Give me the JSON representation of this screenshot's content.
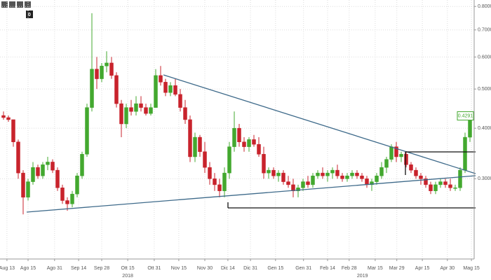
{
  "chart_data": {
    "type": "candlestick",
    "log_y": true,
    "grid": true,
    "up_color": "#43a82f",
    "down_color": "#c8232c",
    "badge": "0",
    "ylim": [
      0.19,
      0.83
    ],
    "yticks": [
      {
        "value": 0.3,
        "label": "0.3000"
      },
      {
        "value": 0.4,
        "label": "0.4000"
      },
      {
        "value": 0.5,
        "label": "0.5000"
      },
      {
        "value": 0.6,
        "label": "0.6000"
      },
      {
        "value": 0.7,
        "label": "0.7000"
      },
      {
        "value": 0.8,
        "label": "0.8000"
      }
    ],
    "xticks": [
      {
        "value": 0.7,
        "label": "Aug 13"
      },
      {
        "value": 5,
        "label": "Ago 15"
      },
      {
        "value": 10.4,
        "label": "Ago 31"
      },
      {
        "value": 15.3,
        "label": "Sep 14"
      },
      {
        "value": 20,
        "label": "Sep 28"
      },
      {
        "value": 25.3,
        "label": "Ott 15"
      },
      {
        "value": 30.7,
        "label": "Ott 31"
      },
      {
        "value": 35.7,
        "label": "Nov 15"
      },
      {
        "value": 41,
        "label": "Nov 30"
      },
      {
        "value": 45.7,
        "label": "Dic 14"
      },
      {
        "value": 50.3,
        "label": "Dic 31"
      },
      {
        "value": 55.4,
        "label": "Gen 15"
      },
      {
        "value": 61.1,
        "label": "Gen 31"
      },
      {
        "value": 66,
        "label": "Feb 14"
      },
      {
        "value": 70.4,
        "label": "Feb 28"
      },
      {
        "value": 75.7,
        "label": "Mar 15"
      },
      {
        "value": 80.1,
        "label": "Mar 29"
      },
      {
        "value": 85.3,
        "label": "Apr 15"
      },
      {
        "value": 90.4,
        "label": "Apr 30"
      },
      {
        "value": 95.3,
        "label": "Mag 15"
      }
    ],
    "year_labels": [
      {
        "value": 25.3,
        "label": "2018"
      },
      {
        "value": 73.1,
        "label": "2019"
      }
    ],
    "open": [
      0.43,
      0.425,
      0.42,
      0.37,
      0.31,
      0.27,
      0.295,
      0.32,
      0.305,
      0.325,
      0.33,
      0.315,
      0.285,
      0.265,
      0.26,
      0.275,
      0.305,
      0.345,
      0.45,
      0.56,
      0.53,
      0.57,
      0.58,
      0.54,
      0.46,
      0.41,
      0.45,
      0.44,
      0.46,
      0.45,
      0.435,
      0.45,
      0.54,
      0.52,
      0.49,
      0.51,
      0.485,
      0.45,
      0.42,
      0.34,
      0.38,
      0.35,
      0.32,
      0.3,
      0.29,
      0.28,
      0.31,
      0.36,
      0.4,
      0.37,
      0.36,
      0.375,
      0.365,
      0.345,
      0.31,
      0.315,
      0.305,
      0.31,
      0.295,
      0.29,
      0.28,
      0.285,
      0.295,
      0.29,
      0.305,
      0.31,
      0.305,
      0.31,
      0.315,
      0.305,
      0.3,
      0.305,
      0.31,
      0.305,
      0.3,
      0.29,
      0.295,
      0.305,
      0.32,
      0.335,
      0.36,
      0.34,
      0.345,
      0.325,
      0.315,
      0.305,
      0.3,
      0.29,
      0.28,
      0.29,
      0.295,
      0.29,
      0.285,
      0.285,
      0.315,
      0.38
    ],
    "high": [
      0.44,
      0.43,
      0.42,
      0.375,
      0.315,
      0.3,
      0.33,
      0.325,
      0.33,
      0.34,
      0.335,
      0.32,
      0.29,
      0.27,
      0.28,
      0.31,
      0.35,
      0.46,
      0.77,
      0.6,
      0.58,
      0.62,
      0.6,
      0.55,
      0.47,
      0.46,
      0.47,
      0.48,
      0.48,
      0.46,
      0.46,
      0.56,
      0.57,
      0.53,
      0.52,
      0.53,
      0.5,
      0.47,
      0.43,
      0.39,
      0.385,
      0.37,
      0.33,
      0.31,
      0.3,
      0.32,
      0.37,
      0.44,
      0.41,
      0.38,
      0.38,
      0.385,
      0.38,
      0.36,
      0.32,
      0.32,
      0.315,
      0.315,
      0.305,
      0.3,
      0.29,
      0.3,
      0.305,
      0.31,
      0.315,
      0.32,
      0.315,
      0.32,
      0.325,
      0.31,
      0.31,
      0.315,
      0.315,
      0.31,
      0.305,
      0.3,
      0.31,
      0.33,
      0.34,
      0.365,
      0.37,
      0.35,
      0.35,
      0.33,
      0.32,
      0.31,
      0.305,
      0.295,
      0.295,
      0.3,
      0.3,
      0.3,
      0.29,
      0.32,
      0.39,
      0.44
    ],
    "low": [
      0.42,
      0.415,
      0.36,
      0.3,
      0.245,
      0.265,
      0.29,
      0.3,
      0.3,
      0.315,
      0.31,
      0.28,
      0.26,
      0.25,
      0.255,
      0.27,
      0.3,
      0.34,
      0.44,
      0.5,
      0.52,
      0.55,
      0.53,
      0.45,
      0.38,
      0.4,
      0.43,
      0.43,
      0.44,
      0.43,
      0.43,
      0.45,
      0.51,
      0.48,
      0.48,
      0.48,
      0.44,
      0.41,
      0.33,
      0.33,
      0.34,
      0.31,
      0.29,
      0.28,
      0.27,
      0.27,
      0.3,
      0.35,
      0.36,
      0.35,
      0.35,
      0.36,
      0.34,
      0.3,
      0.3,
      0.3,
      0.295,
      0.29,
      0.285,
      0.27,
      0.27,
      0.28,
      0.285,
      0.285,
      0.3,
      0.3,
      0.295,
      0.3,
      0.3,
      0.295,
      0.295,
      0.3,
      0.3,
      0.295,
      0.285,
      0.28,
      0.29,
      0.3,
      0.31,
      0.33,
      0.33,
      0.33,
      0.32,
      0.31,
      0.3,
      0.29,
      0.285,
      0.275,
      0.275,
      0.285,
      0.285,
      0.28,
      0.28,
      0.28,
      0.31,
      0.37
    ],
    "close": [
      0.425,
      0.42,
      0.37,
      0.31,
      0.27,
      0.295,
      0.32,
      0.305,
      0.325,
      0.33,
      0.315,
      0.285,
      0.265,
      0.26,
      0.275,
      0.305,
      0.345,
      0.45,
      0.56,
      0.53,
      0.57,
      0.58,
      0.54,
      0.46,
      0.41,
      0.45,
      0.44,
      0.46,
      0.45,
      0.435,
      0.45,
      0.54,
      0.52,
      0.49,
      0.51,
      0.485,
      0.45,
      0.42,
      0.34,
      0.38,
      0.35,
      0.32,
      0.3,
      0.29,
      0.28,
      0.31,
      0.36,
      0.4,
      0.37,
      0.36,
      0.375,
      0.365,
      0.345,
      0.31,
      0.315,
      0.305,
      0.31,
      0.295,
      0.29,
      0.28,
      0.285,
      0.295,
      0.29,
      0.305,
      0.31,
      0.305,
      0.31,
      0.315,
      0.305,
      0.3,
      0.305,
      0.31,
      0.305,
      0.3,
      0.29,
      0.295,
      0.305,
      0.32,
      0.335,
      0.36,
      0.34,
      0.345,
      0.325,
      0.315,
      0.305,
      0.3,
      0.29,
      0.28,
      0.29,
      0.295,
      0.29,
      0.285,
      0.285,
      0.315,
      0.38,
      0.4291
    ]
  }
}
